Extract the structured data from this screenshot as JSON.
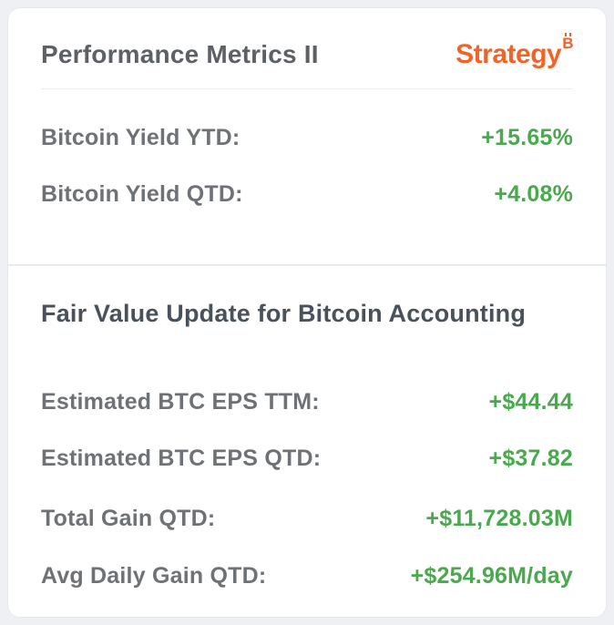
{
  "page": {
    "background_color": "#eef0f3"
  },
  "card": {
    "header": {
      "title": "Performance Metrics II",
      "logo_text": "Strategy",
      "logo_sup": "B",
      "logo_color": "#f0642a"
    },
    "metrics_top": [
      {
        "label": "Bitcoin Yield YTD:",
        "value": "+15.65%"
      },
      {
        "label": "Bitcoin Yield QTD:",
        "value": "+4.08%"
      }
    ],
    "fair_value_section": {
      "heading": "Fair Value Update for Bitcoin Accounting",
      "metrics": [
        {
          "label": "Estimated BTC EPS TTM:",
          "value": "+$44.44"
        },
        {
          "label": "Estimated BTC EPS QTD:",
          "value": "+$37.82"
        },
        {
          "label": "Total Gain QTD:",
          "value": "+$11,728.03M"
        },
        {
          "label": "Avg Daily Gain QTD:",
          "value": "+$254.96M/day"
        }
      ]
    },
    "colors": {
      "positive_value": "#4aa84e",
      "label_gray": "#6e7276",
      "heading_dark": "#49515a",
      "brand_orange": "#f0642a"
    }
  }
}
